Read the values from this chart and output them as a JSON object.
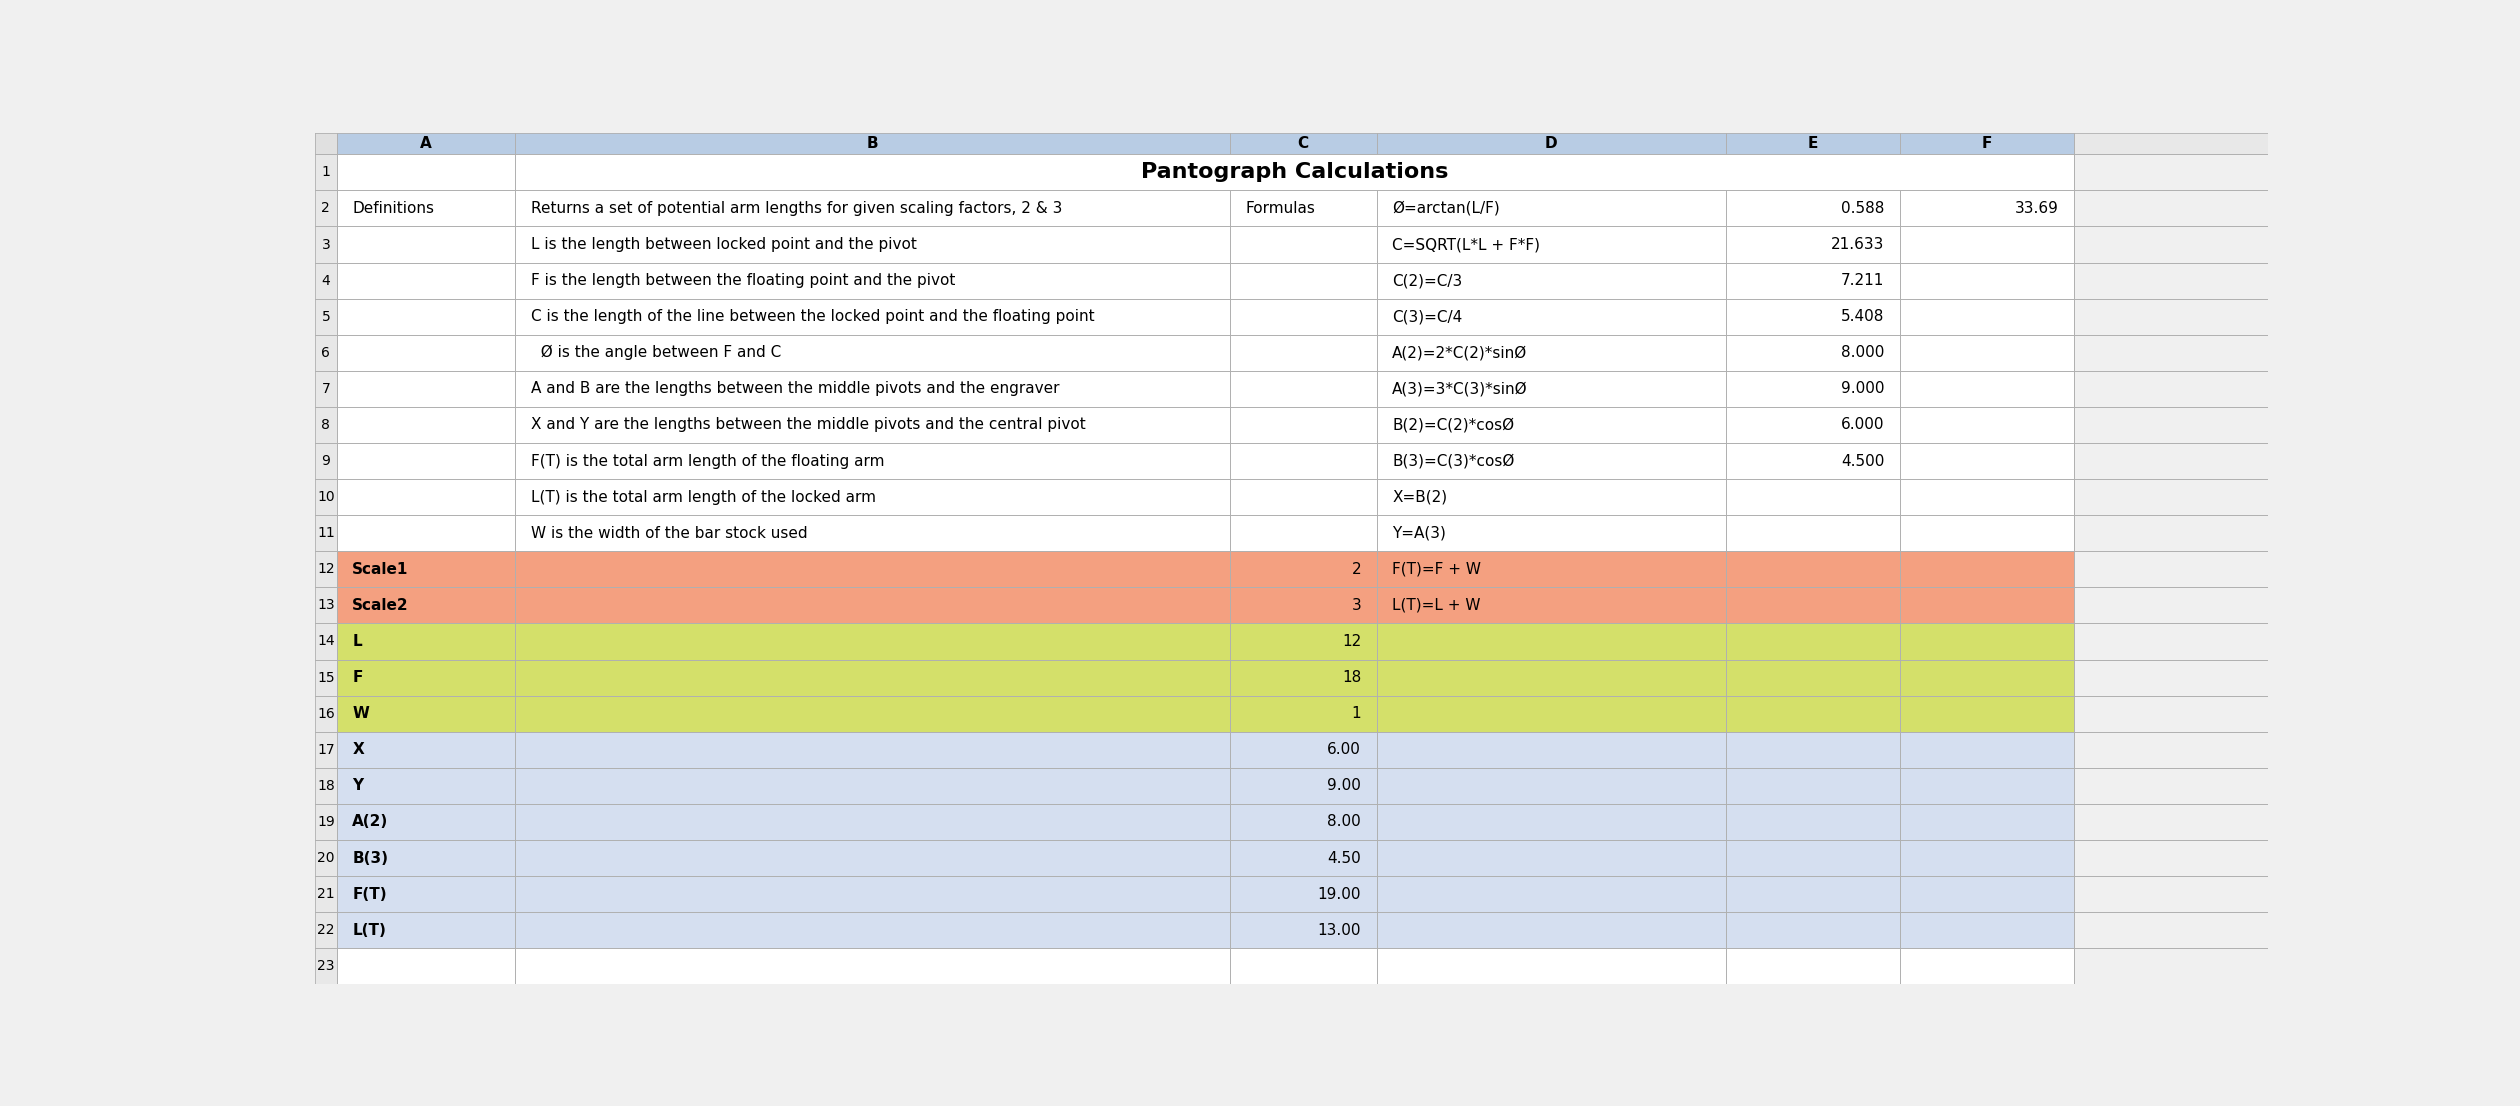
{
  "title": "Pantograph Calculations",
  "col_header_bg": "#b8cce4",
  "row_num_bg": "#e0e0e0",
  "border_color": "#b0b0b0",
  "rows": [
    {
      "num": 1,
      "bg": "#ffffff",
      "cells": {
        "A": "",
        "B": "Pantograph Calculations",
        "C": "",
        "D": "",
        "E": "",
        "F": ""
      },
      "title_row": true
    },
    {
      "num": 2,
      "bg": "#ffffff",
      "cells": {
        "A": "Definitions",
        "B": "Returns a set of potential arm lengths for given scaling factors, 2 & 3",
        "C": "Formulas",
        "D": "Ø=arctan(L/F)",
        "E": "0.588",
        "F": "33.69"
      }
    },
    {
      "num": 3,
      "bg": "#ffffff",
      "cells": {
        "A": "",
        "B": "L is the length between locked point and the pivot",
        "C": "",
        "D": "C=SQRT(L*L + F*F)",
        "E": "21.633",
        "F": ""
      }
    },
    {
      "num": 4,
      "bg": "#ffffff",
      "cells": {
        "A": "",
        "B": "F is the length between the floating point and the pivot",
        "C": "",
        "D": "C(2)=C/3",
        "E": "7.211",
        "F": ""
      }
    },
    {
      "num": 5,
      "bg": "#ffffff",
      "cells": {
        "A": "",
        "B": "C is the length of the line between the locked point and the floating point",
        "C": "",
        "D": "C(3)=C/4",
        "E": "5.408",
        "F": ""
      }
    },
    {
      "num": 6,
      "bg": "#ffffff",
      "cells": {
        "A": "",
        "B": "  Ø is the angle between F and C",
        "C": "",
        "D": "A(2)=2*C(2)*sinØ",
        "E": "8.000",
        "F": ""
      }
    },
    {
      "num": 7,
      "bg": "#ffffff",
      "cells": {
        "A": "",
        "B": "A and B are the lengths between the middle pivots and the engraver",
        "C": "",
        "D": "A(3)=3*C(3)*sinØ",
        "E": "9.000",
        "F": ""
      }
    },
    {
      "num": 8,
      "bg": "#ffffff",
      "cells": {
        "A": "",
        "B": "X and Y are the lengths between the middle pivots and the central pivot",
        "C": "",
        "D": "B(2)=C(2)*cosØ",
        "E": "6.000",
        "F": ""
      }
    },
    {
      "num": 9,
      "bg": "#ffffff",
      "cells": {
        "A": "",
        "B": "F(T) is the total arm length of the floating arm",
        "C": "",
        "D": "B(3)=C(3)*cosØ",
        "E": "4.500",
        "F": ""
      }
    },
    {
      "num": 10,
      "bg": "#ffffff",
      "cells": {
        "A": "",
        "B": "L(T) is the total arm length of the locked arm",
        "C": "",
        "D": "X=B(2)",
        "E": "",
        "F": ""
      }
    },
    {
      "num": 11,
      "bg": "#ffffff",
      "cells": {
        "A": "",
        "B": "W is the width of the bar stock used",
        "C": "",
        "D": "Y=A(3)",
        "E": "",
        "F": ""
      }
    },
    {
      "num": 12,
      "bg": "#f4a080",
      "cells": {
        "A": "Scale1",
        "B": "",
        "C": "2",
        "D": "F(T)=F + W",
        "E": "",
        "F": ""
      }
    },
    {
      "num": 13,
      "bg": "#f4a080",
      "cells": {
        "A": "Scale2",
        "B": "",
        "C": "3",
        "D": "L(T)=L + W",
        "E": "",
        "F": ""
      }
    },
    {
      "num": 14,
      "bg": "#d4e06a",
      "cells": {
        "A": "L",
        "B": "",
        "C": "12",
        "D": "",
        "E": "",
        "F": ""
      }
    },
    {
      "num": 15,
      "bg": "#d4e06a",
      "cells": {
        "A": "F",
        "B": "",
        "C": "18",
        "D": "",
        "E": "",
        "F": ""
      }
    },
    {
      "num": 16,
      "bg": "#d4e06a",
      "cells": {
        "A": "W",
        "B": "",
        "C": "1",
        "D": "",
        "E": "",
        "F": ""
      }
    },
    {
      "num": 17,
      "bg": "#d5dff0",
      "cells": {
        "A": "X",
        "B": "",
        "C": "6.00",
        "D": "",
        "E": "",
        "F": ""
      }
    },
    {
      "num": 18,
      "bg": "#d5dff0",
      "cells": {
        "A": "Y",
        "B": "",
        "C": "9.00",
        "D": "",
        "E": "",
        "F": ""
      }
    },
    {
      "num": 19,
      "bg": "#d5dff0",
      "cells": {
        "A": "A(2)",
        "B": "",
        "C": "8.00",
        "D": "",
        "E": "",
        "F": ""
      }
    },
    {
      "num": 20,
      "bg": "#d5dff0",
      "cells": {
        "A": "B(3)",
        "B": "",
        "C": "4.50",
        "D": "",
        "E": "",
        "F": ""
      }
    },
    {
      "num": 21,
      "bg": "#d5dff0",
      "cells": {
        "A": "F(T)",
        "B": "",
        "C": "19.00",
        "D": "",
        "E": "",
        "F": ""
      }
    },
    {
      "num": 22,
      "bg": "#d5dff0",
      "cells": {
        "A": "L(T)",
        "B": "",
        "C": "13.00",
        "D": "",
        "E": "",
        "F": ""
      }
    },
    {
      "num": 23,
      "bg": "#ffffff",
      "cells": {
        "A": "",
        "B": "",
        "C": "",
        "D": "",
        "E": "",
        "F": ""
      }
    }
  ]
}
